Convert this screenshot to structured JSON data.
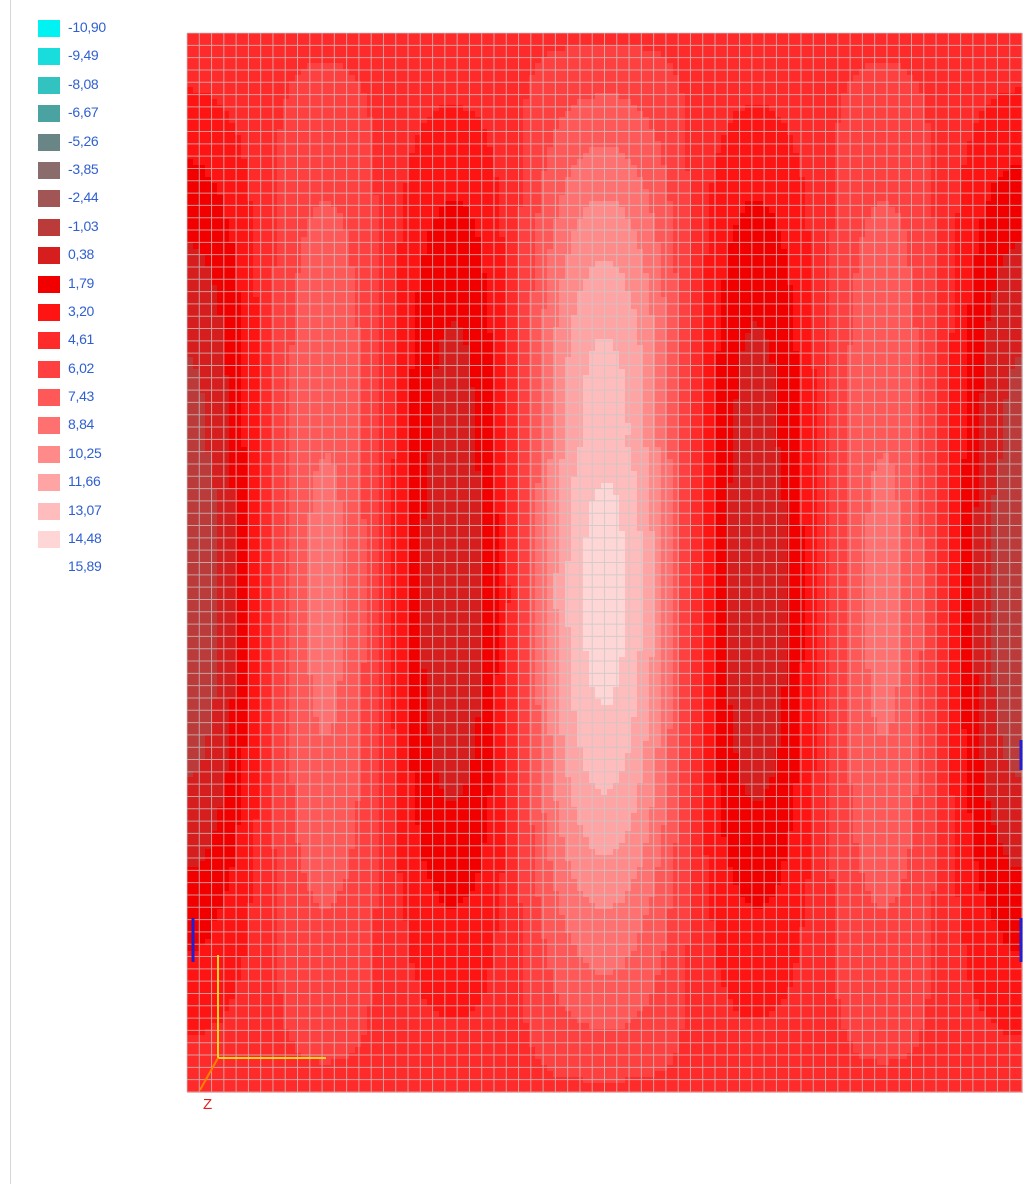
{
  "legend": {
    "entries": [
      {
        "label": "-10,90",
        "color": "#00f2f2"
      },
      {
        "label": "-9,49",
        "color": "#19dcdc"
      },
      {
        "label": "-8,08",
        "color": "#32c3c0"
      },
      {
        "label": "-6,67",
        "color": "#4aa3a0"
      },
      {
        "label": "-5,26",
        "color": "#6a8585"
      },
      {
        "label": "-3,85",
        "color": "#8a6c6c"
      },
      {
        "label": "-2,44",
        "color": "#a25555"
      },
      {
        "label": "-1,03",
        "color": "#bb3a3a"
      },
      {
        "label": "0,38",
        "color": "#d61e1e"
      },
      {
        "label": "1,79",
        "color": "#f20000"
      },
      {
        "label": "3,20",
        "color": "#ff1414"
      },
      {
        "label": "4,61",
        "color": "#ff2a2a"
      },
      {
        "label": "6,02",
        "color": "#ff4040"
      },
      {
        "label": "7,43",
        "color": "#ff5858"
      },
      {
        "label": "8,84",
        "color": "#ff7070"
      },
      {
        "label": "10,25",
        "color": "#ff8a8a"
      },
      {
        "label": "11,66",
        "color": "#ffa4a4"
      },
      {
        "label": "13,07",
        "color": "#ffbcbc"
      },
      {
        "label": "14,48",
        "color": "#ffd6d6"
      },
      {
        "label": "15,89",
        "color": "#ffffff"
      }
    ]
  },
  "axes": {
    "z_label": "Z",
    "axis_color": "#ffd21f",
    "z_axis_color": "#ff8000"
  },
  "mesh": {
    "line_color": "#c8c8c8"
  },
  "support_markers": {
    "color": "#2020d0"
  }
}
